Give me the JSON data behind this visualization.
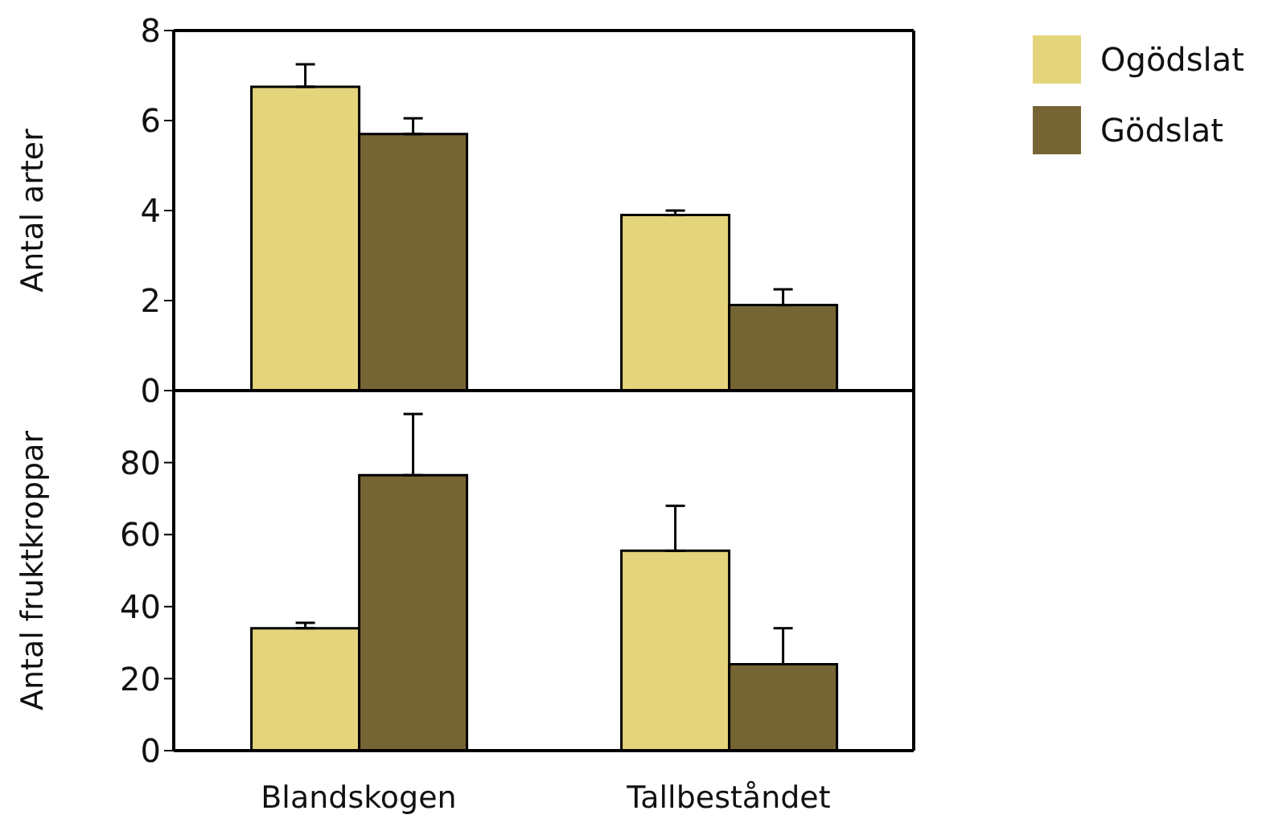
{
  "chart_data": [
    {
      "type": "bar",
      "ylabel": "Antal arter",
      "categories": [
        null,
        null
      ],
      "tick_labels": "y",
      "ylim": [
        0,
        8
      ],
      "yticks": [
        0,
        2,
        4,
        6,
        8
      ],
      "legend": "top right",
      "series": [
        {
          "name": "Ogödslat",
          "color": "#e4d47c",
          "values": [
            6.75,
            3.9
          ],
          "errors": [
            [
              6.75,
              7.25
            ],
            [
              3.9,
              4.0
            ]
          ]
        },
        {
          "name": "Gödslat",
          "color": "#766534",
          "values": [
            5.7,
            1.9
          ],
          "errors": [
            [
              5.7,
              6.05
            ],
            [
              1.9,
              2.25
            ]
          ]
        }
      ]
    },
    {
      "type": "bar",
      "ylabel": "Antal fruktkroppar",
      "categories": [
        "Blandskogen",
        "Tallbeståndet"
      ],
      "ylim": [
        0,
        100
      ],
      "yticks": [
        0,
        20,
        40,
        60,
        80,
        {
          "value": 100,
          "label": null
        }
      ],
      "series": [
        {
          "color": "#e4d47c",
          "values": [
            34,
            55.5
          ],
          "errors": [
            [
              34,
              35.5
            ],
            [
              55.5,
              68
            ]
          ]
        },
        {
          "color": "#766534",
          "values": [
            76.5,
            24
          ],
          "errors": [
            [
              76.5,
              93.5
            ],
            [
              24,
              34
            ]
          ]
        }
      ]
    }
  ]
}
